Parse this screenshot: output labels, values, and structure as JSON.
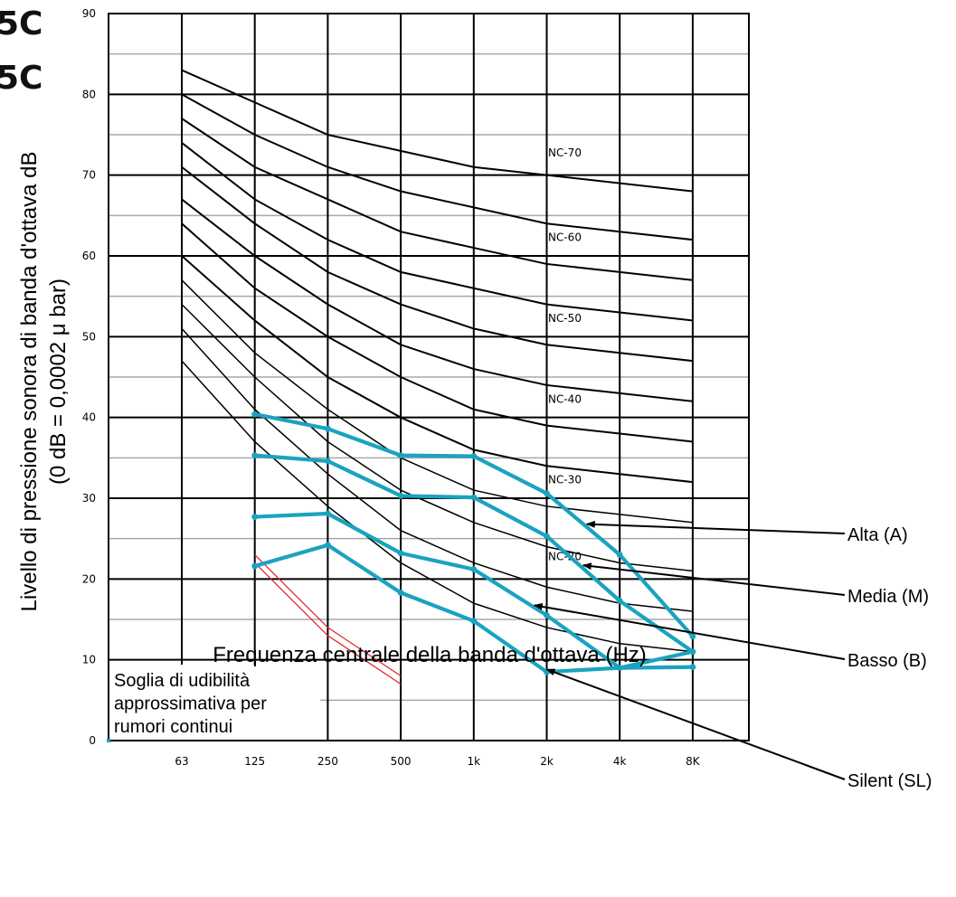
{
  "fragments": [
    "5C",
    "5C"
  ],
  "chart_data": {
    "type": "line",
    "xlabel": "Frequenza centrale della banda d'ottava (Hz)",
    "ylabel": [
      "Livello di pressione sonora di banda d'ottava dB",
      "(0 dB = 0,0002 μ bar)"
    ],
    "x_categories": [
      "63",
      "125",
      "250",
      "500",
      "1k",
      "2k",
      "4k",
      "8K"
    ],
    "ylim": [
      0,
      90
    ],
    "y_ticks": [
      "0",
      "10",
      "20",
      "30",
      "40",
      "50",
      "60",
      "70",
      "80",
      "90"
    ],
    "grid": true,
    "nc_curves": [
      {
        "name": "NC-70",
        "values": [
          83,
          79,
          75,
          73,
          71,
          70,
          69,
          68
        ]
      },
      {
        "name": "",
        "values": [
          80,
          75,
          71,
          68,
          66,
          64,
          63,
          62
        ]
      },
      {
        "name": "NC-60",
        "values": [
          77,
          71,
          67,
          63,
          61,
          59,
          58,
          57
        ]
      },
      {
        "name": "",
        "values": [
          74,
          67,
          62,
          58,
          56,
          54,
          53,
          52
        ]
      },
      {
        "name": "NC-50",
        "values": [
          71,
          64,
          58,
          54,
          51,
          49,
          48,
          47
        ]
      },
      {
        "name": "",
        "values": [
          67,
          60,
          54,
          49,
          46,
          44,
          43,
          42
        ]
      },
      {
        "name": "NC-40",
        "values": [
          64,
          56,
          50,
          45,
          41,
          39,
          38,
          37
        ]
      },
      {
        "name": "",
        "values": [
          60,
          52,
          45,
          40,
          36,
          34,
          33,
          32
        ]
      },
      {
        "name": "NC-30",
        "values": [
          57,
          48,
          41,
          35,
          31,
          29,
          28,
          27
        ]
      },
      {
        "name": "",
        "values": [
          54,
          45,
          37,
          31,
          27,
          24,
          22,
          21
        ]
      },
      {
        "name": "NC-20",
        "values": [
          51,
          41,
          33,
          26,
          22,
          19,
          17,
          16
        ]
      },
      {
        "name": "",
        "values": [
          47,
          37,
          29,
          22,
          17,
          14,
          12,
          11
        ]
      }
    ],
    "series": [
      {
        "name": "Alta (A)",
        "color": "#1aa3bf",
        "x": [
          "125",
          "250",
          "500",
          "1k",
          "2k",
          "4k",
          "8K"
        ],
        "values": [
          40.4,
          38.6,
          35.3,
          35.2,
          30.6,
          23.0,
          12.9
        ]
      },
      {
        "name": "Media (M)",
        "color": "#1aa3bf",
        "x": [
          "125",
          "250",
          "500",
          "1k",
          "2k",
          "4k",
          "8K"
        ],
        "values": [
          35.3,
          34.6,
          30.3,
          30.1,
          25.3,
          17.3,
          11.0
        ]
      },
      {
        "name": "Basso (B)",
        "color": "#1aa3bf",
        "x": [
          "125",
          "250",
          "500",
          "1k",
          "2k",
          "4k",
          "8K"
        ],
        "values": [
          27.7,
          28.1,
          23.2,
          21.2,
          15.5,
          9.0,
          11.0
        ]
      },
      {
        "name": "Silent (SL)",
        "color": "#1aa3bf",
        "x": [
          "125",
          "250",
          "500",
          "1k",
          "2k",
          "4k",
          "8K"
        ],
        "values": [
          21.6,
          24.2,
          18.3,
          14.8,
          8.5,
          9.0,
          9.1
        ]
      }
    ],
    "threshold": {
      "label": [
        "Soglia di udibilità",
        "approssimativa per",
        "rumori continui"
      ],
      "color": "#e02020",
      "x": [
        "125",
        "250",
        "500"
      ],
      "upper": [
        23.0,
        14.0,
        8.0
      ],
      "lower": [
        22.0,
        13.0,
        7.0
      ]
    },
    "legend": [
      "Alta (A)",
      "Media (M)",
      "Basso (B)",
      "Silent (SL)"
    ]
  }
}
